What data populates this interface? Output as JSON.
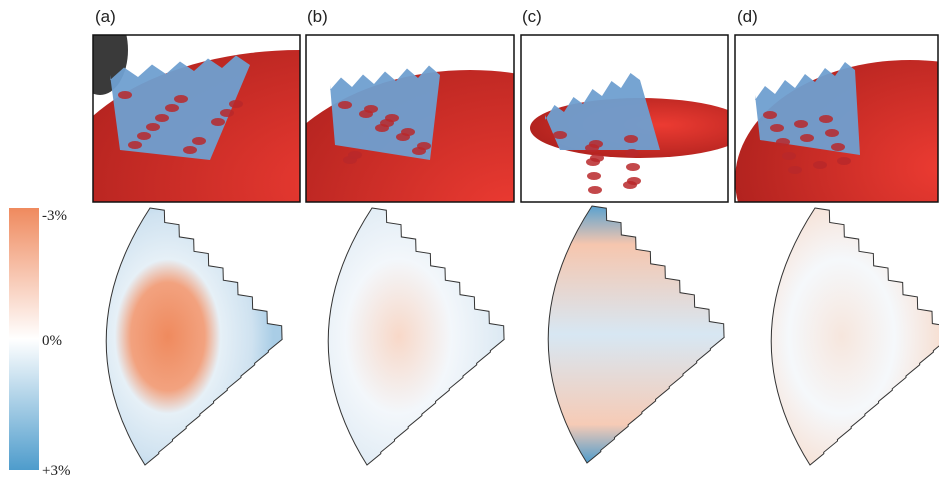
{
  "panels": [
    {
      "label": "(a)"
    },
    {
      "label": "(b)"
    },
    {
      "label": "(c)"
    },
    {
      "label": "(d)"
    }
  ],
  "colorbar": {
    "top_label": "-3%",
    "middle_label": "0%",
    "bottom_label": "+3%"
  }
}
